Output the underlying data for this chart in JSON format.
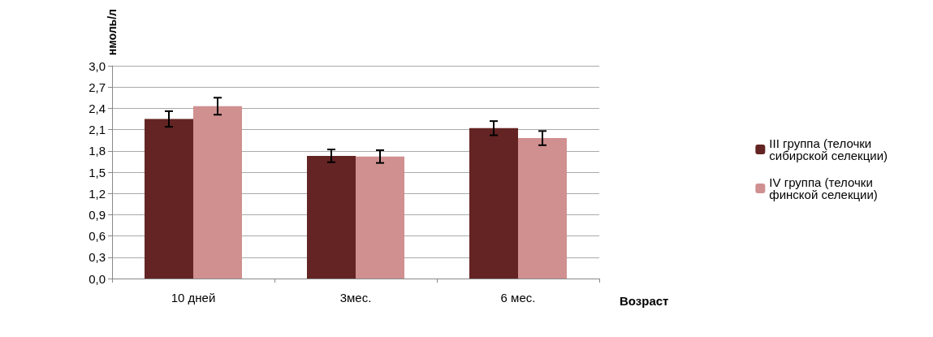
{
  "chart_data": {
    "type": "bar",
    "xlabel": "Возраст",
    "ylabel": "нмоль/л",
    "categories": [
      "10 дней",
      "3мес.",
      "6 мес."
    ],
    "series": [
      {
        "name": "III группа (телочки сибирской селекции)",
        "color": "#632423",
        "values": [
          2.25,
          1.73,
          2.12
        ],
        "errors": [
          0.11,
          0.09,
          0.1
        ]
      },
      {
        "name": "IV группа (телочки финской селекции)",
        "color": "#d09090",
        "values": [
          2.43,
          1.72,
          1.98
        ],
        "errors": [
          0.12,
          0.09,
          0.1
        ]
      }
    ],
    "ylim": [
      0,
      3
    ],
    "yticks": [
      {
        "value": 0,
        "label": "0,0"
      },
      {
        "value": 0.3,
        "label": "0,3"
      },
      {
        "value": 0.6,
        "label": "0,6"
      },
      {
        "value": 0.9,
        "label": "0,9"
      },
      {
        "value": 1.2,
        "label": "1,2"
      },
      {
        "value": 1.5,
        "label": "1,5"
      },
      {
        "value": 1.8,
        "label": "1,8"
      },
      {
        "value": 2.1,
        "label": "2,1"
      },
      {
        "value": 2.4,
        "label": "2,4"
      },
      {
        "value": 2.7,
        "label": "2,7"
      },
      {
        "value": 3,
        "label": "3,0"
      }
    ],
    "grid": "y",
    "legend": "right"
  }
}
